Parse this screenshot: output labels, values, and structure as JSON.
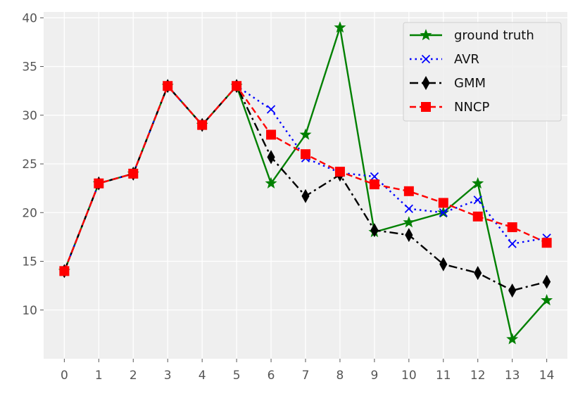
{
  "chart_data": {
    "type": "line",
    "title": "",
    "xlabel": "",
    "ylabel": "",
    "x": [
      0,
      1,
      2,
      3,
      4,
      5,
      6,
      7,
      8,
      9,
      10,
      11,
      12,
      13,
      14
    ],
    "x_ticks": [
      "0",
      "1",
      "2",
      "3",
      "4",
      "5",
      "6",
      "7",
      "8",
      "9",
      "10",
      "11",
      "12",
      "13",
      "14"
    ],
    "xlim": [
      -0.6,
      14.6
    ],
    "ylim": [
      5.0,
      40.6
    ],
    "y_ticks": [
      10,
      15,
      20,
      25,
      30,
      35,
      40
    ],
    "y_tick_labels": [
      "10",
      "15",
      "20",
      "25",
      "30",
      "35",
      "40"
    ],
    "grid": true,
    "background": "#efefef",
    "legend_position": "top-right",
    "series": [
      {
        "name": "ground truth",
        "color": "#008000",
        "linestyle": "solid",
        "marker": "star",
        "values": [
          14,
          23,
          24,
          33,
          29,
          33,
          23,
          28,
          39,
          18,
          19,
          20,
          23,
          7,
          11
        ]
      },
      {
        "name": "AVR",
        "color": "#0000ff",
        "linestyle": "dotted",
        "marker": "x",
        "values": [
          14,
          23,
          24,
          33,
          29,
          33,
          30.6,
          25.6,
          24.1,
          23.7,
          20.4,
          20.0,
          21.3,
          16.8,
          17.4
        ]
      },
      {
        "name": "GMM",
        "color": "#000000",
        "linestyle": "dashdot",
        "marker": "thin-diamond",
        "values": [
          14,
          23,
          24,
          33,
          29,
          33,
          25.7,
          21.7,
          23.9,
          18.2,
          17.7,
          14.7,
          13.8,
          12.0,
          12.9
        ]
      },
      {
        "name": "NNCP",
        "color": "#ff0000",
        "linestyle": "dashed",
        "marker": "square",
        "values": [
          14,
          23,
          24,
          33,
          29,
          33,
          28.0,
          26.0,
          24.2,
          22.9,
          22.2,
          21.0,
          19.6,
          18.5,
          16.9
        ]
      }
    ]
  }
}
